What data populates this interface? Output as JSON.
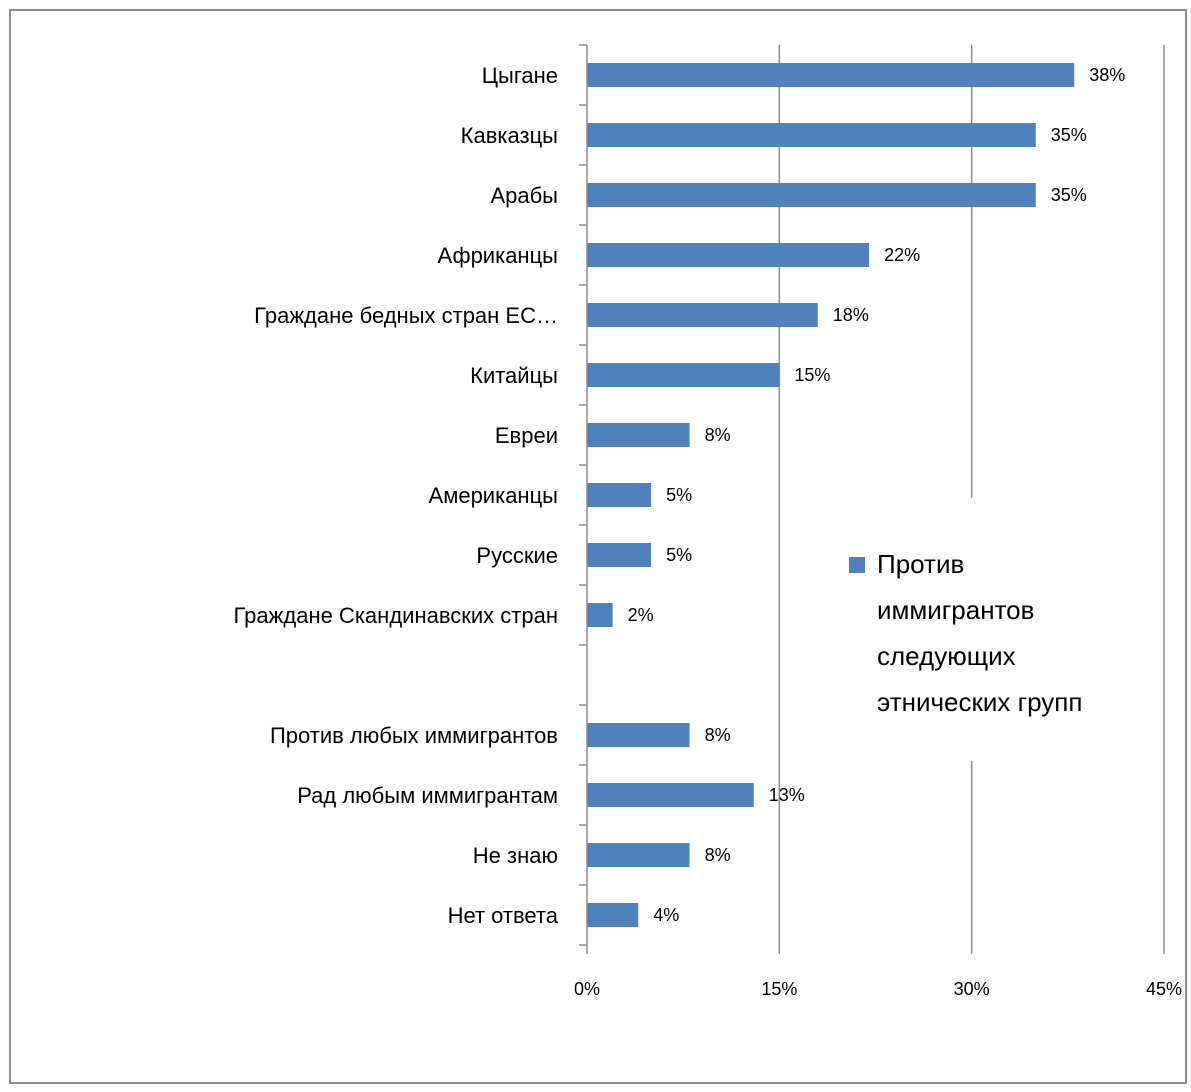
{
  "chart_data": {
    "type": "bar",
    "orientation": "horizontal",
    "title": "",
    "xlabel": "",
    "ylabel": "",
    "xlim": [
      0,
      45
    ],
    "x_ticks": [
      {
        "value": 0,
        "label": "0%"
      },
      {
        "value": 15,
        "label": "15%"
      },
      {
        "value": 30,
        "label": "30%"
      },
      {
        "value": 45,
        "label": "45%"
      }
    ],
    "grid": "vertical",
    "legend_position": "right",
    "series": [
      {
        "name": "Против иммигрантов следующих этнических групп",
        "color": "#4F81BD"
      }
    ],
    "bars": [
      {
        "category": "Цыгане",
        "value": 38,
        "label": "38%"
      },
      {
        "category": "Кавказцы",
        "value": 35,
        "label": "35%"
      },
      {
        "category": "Арабы",
        "value": 35,
        "label": "35%"
      },
      {
        "category": "Африканцы",
        "value": 22,
        "label": "22%"
      },
      {
        "category": "Граждане бедных стран ЕС…",
        "value": 18,
        "label": "18%"
      },
      {
        "category": "Китайцы",
        "value": 15,
        "label": "15%"
      },
      {
        "category": "Евреи",
        "value": 8,
        "label": "8%"
      },
      {
        "category": "Американцы",
        "value": 5,
        "label": "5%"
      },
      {
        "category": "Русские",
        "value": 5,
        "label": "5%"
      },
      {
        "category": "Граждане Скандинавских стран",
        "value": 2,
        "label": "2%"
      },
      {
        "category": "",
        "value": null,
        "label": ""
      },
      {
        "category": "Против любых иммигрантов",
        "value": 8,
        "label": "8%"
      },
      {
        "category": "Рад любым иммигрантам",
        "value": 13,
        "label": "13%"
      },
      {
        "category": "Не знаю",
        "value": 8,
        "label": "8%"
      },
      {
        "category": "Нет ответа",
        "value": 4,
        "label": "4%"
      }
    ],
    "legend_lines": [
      "Против",
      "иммигрантов",
      "следующих",
      "этнических групп"
    ]
  }
}
